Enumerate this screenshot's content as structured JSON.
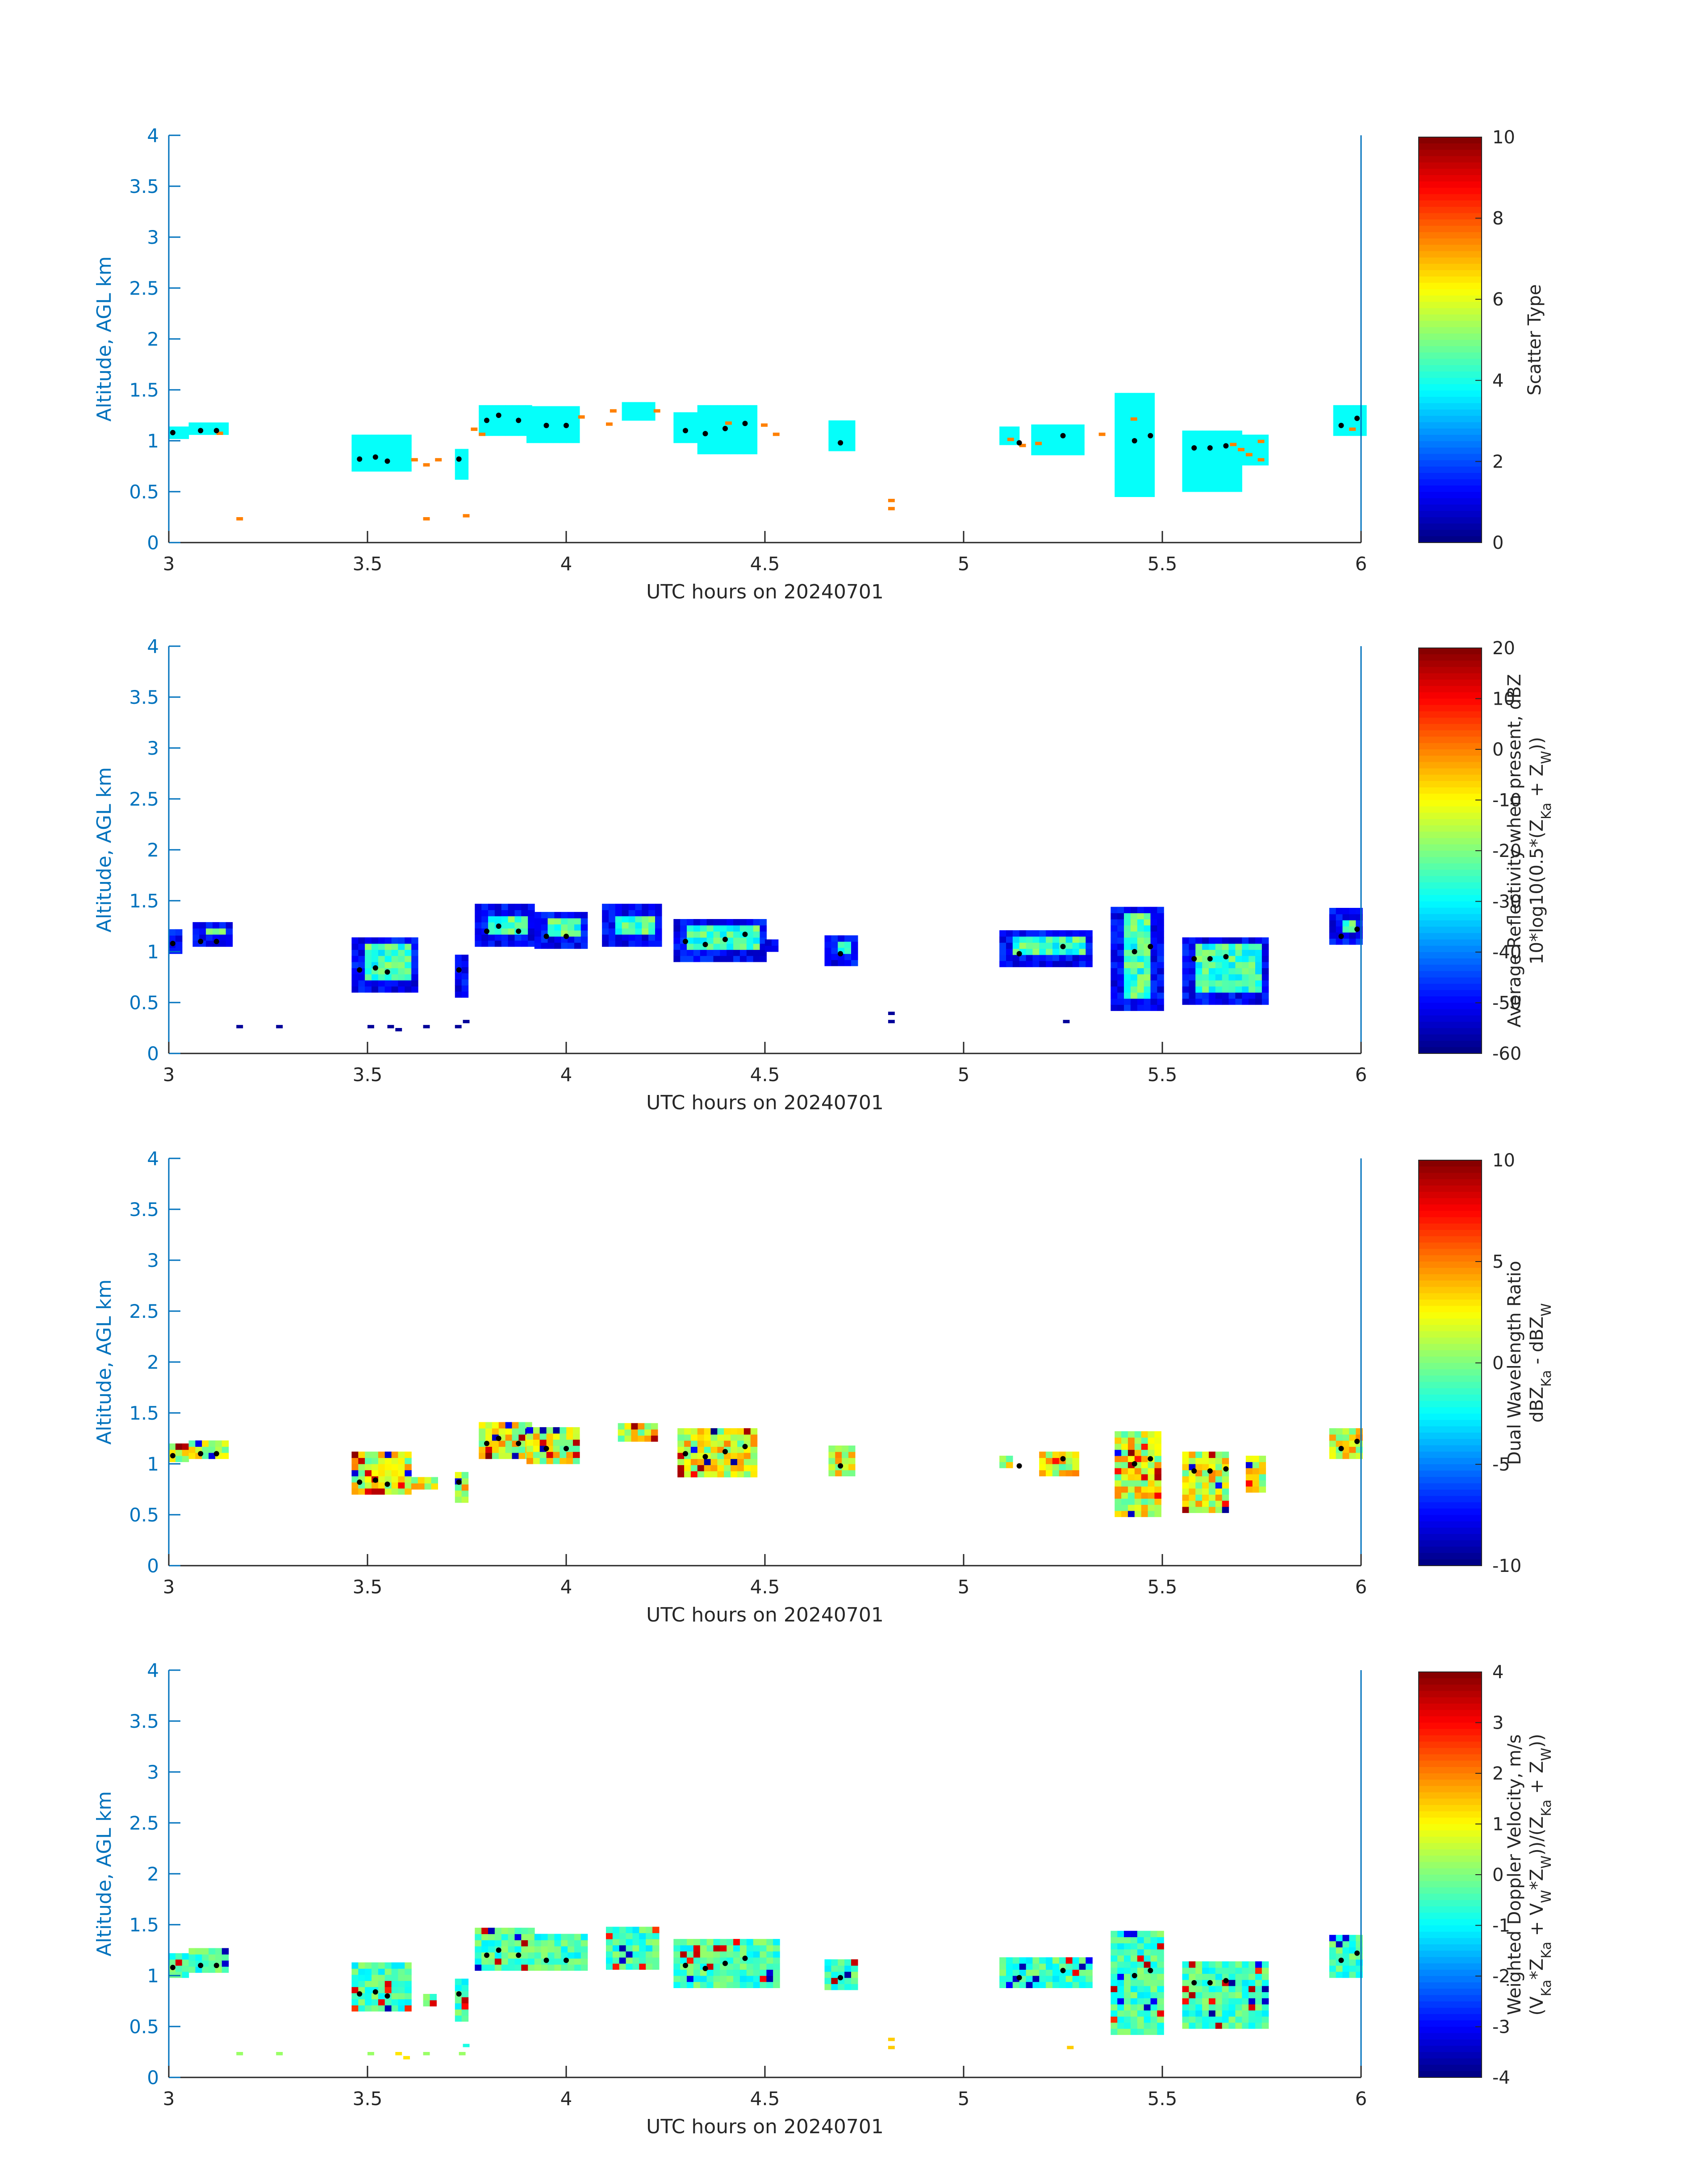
{
  "figure": {
    "panels": [
      {
        "id": "scatter-type",
        "ylabel": "Altitude, AGL km",
        "xlabel": "UTC hours on 20240701",
        "colorbar_label_lines": [
          "Scatter Type"
        ],
        "colorbar_ticks": [
          "10",
          "8",
          "6",
          "4",
          "2",
          "0"
        ]
      },
      {
        "id": "reflectivity",
        "ylabel": "Altitude, AGL km",
        "xlabel": "UTC hours on 20240701",
        "colorbar_label_lines": [
          "Average Reflectivity when present, dBZ",
          "10*log10(0.5*(Z_Ka + Z_W))"
        ],
        "colorbar_ticks": [
          "20",
          "10",
          "0",
          "-10",
          "-20",
          "-30",
          "-40",
          "-50",
          "-60"
        ]
      },
      {
        "id": "dwr",
        "ylabel": "Altitude, AGL km",
        "xlabel": "UTC hours on 20240701",
        "colorbar_label_lines": [
          "Dual Wavelength Ratio",
          "dBZ_Ka - dBZ_W"
        ],
        "colorbar_ticks": [
          "10",
          "5",
          "0",
          "-5",
          "-10"
        ]
      },
      {
        "id": "velocity",
        "ylabel": "Altitude, AGL km",
        "xlabel": "UTC hours on 20240701",
        "colorbar_label_lines": [
          "Weighted Doppler Velocity, m/s",
          "(V_Ka*Z_Ka + V_W*Z_W))/(Z_Ka + Z_W))"
        ],
        "colorbar_ticks": [
          "4",
          "3",
          "2",
          "1",
          "0",
          "-1",
          "-2",
          "-3",
          "-4"
        ]
      }
    ],
    "x_ticks": [
      "3",
      "3.5",
      "4",
      "4.5",
      "5",
      "5.5",
      "6"
    ],
    "y_ticks": [
      "0",
      "0.5",
      "1",
      "1.5",
      "2",
      "2.5",
      "3",
      "3.5",
      "4"
    ]
  },
  "chart_data": [
    {
      "type": "heatmap",
      "xlabel": "UTC hours on 20240701",
      "ylabel": "Altitude, AGL km",
      "xlim": [
        3,
        6
      ],
      "ylim": [
        0,
        4
      ],
      "colorbar": {
        "label": "Scatter Type",
        "range": [
          0,
          10
        ],
        "colormap": "jet"
      },
      "cell_size": {
        "dx_hours": 0.0167,
        "dz_km": 0.06
      },
      "default_value": 3.8,
      "regions": [
        {
          "x": [
            3.0,
            3.04
          ],
          "z": [
            1.02,
            1.14
          ]
        },
        {
          "x": [
            3.05,
            3.15
          ],
          "z": [
            1.06,
            1.18
          ]
        },
        {
          "x": [
            3.46,
            3.6
          ],
          "z": [
            0.7,
            1.05
          ]
        },
        {
          "x": [
            3.72,
            3.75
          ],
          "z": [
            0.62,
            0.92
          ]
        },
        {
          "x": [
            3.78,
            3.9
          ],
          "z": [
            1.05,
            1.33
          ]
        },
        {
          "x": [
            3.9,
            4.02
          ],
          "z": [
            0.98,
            1.3
          ]
        },
        {
          "x": [
            4.14,
            4.22
          ],
          "z": [
            1.2,
            1.33
          ]
        },
        {
          "x": [
            4.27,
            4.33
          ],
          "z": [
            0.98,
            1.28
          ]
        },
        {
          "x": [
            4.33,
            4.48
          ],
          "z": [
            0.87,
            1.3
          ]
        },
        {
          "x": [
            4.66,
            4.72
          ],
          "z": [
            0.9,
            1.15
          ]
        },
        {
          "x": [
            5.09,
            5.13
          ],
          "z": [
            0.96,
            1.12
          ]
        },
        {
          "x": [
            5.17,
            5.3
          ],
          "z": [
            0.86,
            1.14
          ]
        },
        {
          "x": [
            5.38,
            5.48
          ],
          "z": [
            0.45,
            1.42
          ]
        },
        {
          "x": [
            5.55,
            5.7
          ],
          "z": [
            0.5,
            1.05
          ]
        },
        {
          "x": [
            5.7,
            5.76
          ],
          "z": [
            0.76,
            1.05
          ]
        },
        {
          "x": [
            5.93,
            6.0
          ],
          "z": [
            1.05,
            1.33
          ]
        }
      ],
      "spots": [
        {
          "x": 3.12,
          "z": 1.06,
          "v": 7.5
        },
        {
          "x": 3.17,
          "z": 0.22,
          "v": 7.5
        },
        {
          "x": 3.61,
          "z": 0.8,
          "v": 7.5
        },
        {
          "x": 3.64,
          "z": 0.75,
          "v": 7.5
        },
        {
          "x": 3.64,
          "z": 0.22,
          "v": 7.5
        },
        {
          "x": 3.67,
          "z": 0.8,
          "v": 7.5
        },
        {
          "x": 3.74,
          "z": 0.25,
          "v": 7.5
        },
        {
          "x": 3.76,
          "z": 1.1,
          "v": 7.5
        },
        {
          "x": 3.78,
          "z": 1.05,
          "v": 7.5
        },
        {
          "x": 4.03,
          "z": 1.22,
          "v": 7.5
        },
        {
          "x": 4.1,
          "z": 1.15,
          "v": 7.5
        },
        {
          "x": 4.11,
          "z": 1.28,
          "v": 7.5
        },
        {
          "x": 4.22,
          "z": 1.28,
          "v": 7.5
        },
        {
          "x": 4.4,
          "z": 1.16,
          "v": 7.5
        },
        {
          "x": 4.49,
          "z": 1.14,
          "v": 7.5
        },
        {
          "x": 4.52,
          "z": 1.05,
          "v": 7.5
        },
        {
          "x": 4.81,
          "z": 0.32,
          "v": 7.5
        },
        {
          "x": 4.81,
          "z": 0.4,
          "v": 7.5
        },
        {
          "x": 5.11,
          "z": 1.0,
          "v": 7.5
        },
        {
          "x": 5.14,
          "z": 0.94,
          "v": 7.5
        },
        {
          "x": 5.18,
          "z": 0.96,
          "v": 7.5
        },
        {
          "x": 5.34,
          "z": 1.05,
          "v": 7.5
        },
        {
          "x": 5.42,
          "z": 1.2,
          "v": 7.5
        },
        {
          "x": 5.67,
          "z": 0.95,
          "v": 7.5
        },
        {
          "x": 5.69,
          "z": 0.9,
          "v": 7.5
        },
        {
          "x": 5.71,
          "z": 0.85,
          "v": 7.5
        },
        {
          "x": 5.74,
          "z": 0.98,
          "v": 7.5
        },
        {
          "x": 5.74,
          "z": 0.8,
          "v": 7.5
        },
        {
          "x": 5.97,
          "z": 1.1,
          "v": 7.5
        }
      ],
      "cloud_top_trace": [
        {
          "x": 3.01,
          "z": 1.08
        },
        {
          "x": 3.08,
          "z": 1.1
        },
        {
          "x": 3.12,
          "z": 1.1
        },
        {
          "x": 3.48,
          "z": 0.82
        },
        {
          "x": 3.52,
          "z": 0.84
        },
        {
          "x": 3.55,
          "z": 0.8
        },
        {
          "x": 3.73,
          "z": 0.82
        },
        {
          "x": 3.8,
          "z": 1.2
        },
        {
          "x": 3.83,
          "z": 1.25
        },
        {
          "x": 3.88,
          "z": 1.2
        },
        {
          "x": 3.95,
          "z": 1.15
        },
        {
          "x": 4.0,
          "z": 1.15
        },
        {
          "x": 4.3,
          "z": 1.1
        },
        {
          "x": 4.35,
          "z": 1.07
        },
        {
          "x": 4.4,
          "z": 1.12
        },
        {
          "x": 4.45,
          "z": 1.17
        },
        {
          "x": 4.69,
          "z": 0.98
        },
        {
          "x": 5.14,
          "z": 0.98
        },
        {
          "x": 5.25,
          "z": 1.05
        },
        {
          "x": 5.43,
          "z": 1.0
        },
        {
          "x": 5.47,
          "z": 1.05
        },
        {
          "x": 5.58,
          "z": 0.93
        },
        {
          "x": 5.62,
          "z": 0.93
        },
        {
          "x": 5.66,
          "z": 0.95
        },
        {
          "x": 5.95,
          "z": 1.15
        },
        {
          "x": 5.99,
          "z": 1.22
        }
      ]
    },
    {
      "type": "heatmap",
      "xlabel": "UTC hours on 20240701",
      "ylabel": "Altitude, AGL km",
      "xlim": [
        3,
        6
      ],
      "ylim": [
        0,
        4
      ],
      "colorbar": {
        "label": "Average Reflectivity when present, dBZ",
        "range": [
          -60,
          20
        ],
        "colormap": "jet"
      },
      "edge_value": -55,
      "core_value": -25,
      "regions": [
        {
          "x": [
            3.0,
            3.03
          ],
          "z": [
            0.98,
            1.22
          ]
        },
        {
          "x": [
            3.06,
            3.15
          ],
          "z": [
            1.05,
            1.25
          ]
        },
        {
          "x": [
            3.46,
            3.62
          ],
          "z": [
            0.6,
            1.13
          ]
        },
        {
          "x": [
            3.72,
            3.75
          ],
          "z": [
            0.55,
            0.95
          ]
        },
        {
          "x": [
            3.77,
            3.92
          ],
          "z": [
            1.05,
            1.42
          ]
        },
        {
          "x": [
            3.92,
            4.05
          ],
          "z": [
            1.03,
            1.38
          ]
        },
        {
          "x": [
            4.09,
            4.24
          ],
          "z": [
            1.05,
            1.42
          ]
        },
        {
          "x": [
            4.27,
            4.5
          ],
          "z": [
            0.9,
            1.3
          ]
        },
        {
          "x": [
            4.5,
            4.53
          ],
          "z": [
            1.0,
            1.1
          ]
        },
        {
          "x": [
            4.65,
            4.73
          ],
          "z": [
            0.86,
            1.15
          ]
        },
        {
          "x": [
            5.09,
            5.32
          ],
          "z": [
            0.85,
            1.18
          ]
        },
        {
          "x": [
            5.37,
            5.49
          ],
          "z": [
            0.42,
            1.43
          ]
        },
        {
          "x": [
            5.55,
            5.76
          ],
          "z": [
            0.48,
            1.1
          ]
        },
        {
          "x": [
            5.92,
            6.0
          ],
          "z": [
            1.07,
            1.38
          ]
        }
      ],
      "spots": [
        {
          "x": 3.17,
          "z": 0.25,
          "v": -58
        },
        {
          "x": 3.27,
          "z": 0.25,
          "v": -58
        },
        {
          "x": 3.5,
          "z": 0.25,
          "v": -58
        },
        {
          "x": 3.55,
          "z": 0.25,
          "v": -58
        },
        {
          "x": 3.57,
          "z": 0.22,
          "v": -58
        },
        {
          "x": 3.64,
          "z": 0.25,
          "v": -58
        },
        {
          "x": 3.72,
          "z": 0.25,
          "v": -58
        },
        {
          "x": 3.74,
          "z": 0.3,
          "v": -58
        },
        {
          "x": 4.81,
          "z": 0.3,
          "v": -58
        },
        {
          "x": 4.81,
          "z": 0.38,
          "v": -58
        },
        {
          "x": 5.25,
          "z": 0.3,
          "v": -58
        }
      ]
    },
    {
      "type": "heatmap",
      "xlabel": "UTC hours on 20240701",
      "ylabel": "Altitude, AGL km",
      "xlim": [
        3,
        6
      ],
      "ylim": [
        0,
        4
      ],
      "colorbar": {
        "label": "Dual Wavelength Ratio",
        "range": [
          -10,
          10
        ],
        "colormap": "jet"
      },
      "base_value": 2,
      "regions": [
        {
          "x": [
            3.0,
            3.04
          ],
          "z": [
            1.02,
            1.18
          ]
        },
        {
          "x": [
            3.05,
            3.15
          ],
          "z": [
            1.05,
            1.2
          ]
        },
        {
          "x": [
            3.46,
            3.6
          ],
          "z": [
            0.7,
            1.1
          ]
        },
        {
          "x": [
            3.61,
            3.67
          ],
          "z": [
            0.75,
            0.85
          ]
        },
        {
          "x": [
            3.72,
            3.75
          ],
          "z": [
            0.62,
            0.9
          ]
        },
        {
          "x": [
            3.78,
            3.9
          ],
          "z": [
            1.05,
            1.38
          ]
        },
        {
          "x": [
            3.9,
            4.02
          ],
          "z": [
            1.0,
            1.35
          ]
        },
        {
          "x": [
            4.13,
            4.22
          ],
          "z": [
            1.22,
            1.38
          ]
        },
        {
          "x": [
            4.28,
            4.48
          ],
          "z": [
            0.87,
            1.32
          ]
        },
        {
          "x": [
            4.66,
            4.72
          ],
          "z": [
            0.88,
            1.14
          ]
        },
        {
          "x": [
            5.09,
            5.12
          ],
          "z": [
            0.96,
            1.08
          ]
        },
        {
          "x": [
            5.19,
            5.29
          ],
          "z": [
            0.88,
            1.12
          ]
        },
        {
          "x": [
            5.38,
            5.49
          ],
          "z": [
            0.48,
            1.32
          ]
        },
        {
          "x": [
            5.55,
            5.66
          ],
          "z": [
            0.52,
            1.1
          ]
        },
        {
          "x": [
            5.71,
            5.76
          ],
          "z": [
            0.72,
            1.05
          ]
        },
        {
          "x": [
            5.92,
            6.0
          ],
          "z": [
            1.05,
            1.32
          ]
        }
      ]
    },
    {
      "type": "heatmap",
      "xlabel": "UTC hours on 20240701",
      "ylabel": "Altitude, AGL km",
      "xlim": [
        3,
        6
      ],
      "ylim": [
        0,
        4
      ],
      "colorbar": {
        "label": "Weighted Doppler Velocity, m/s",
        "range": [
          -4,
          4
        ],
        "colormap": "jet"
      },
      "base_value": -0.5,
      "regions": [
        {
          "x": [
            3.0,
            3.04
          ],
          "z": [
            0.98,
            1.18
          ]
        },
        {
          "x": [
            3.05,
            3.15
          ],
          "z": [
            1.03,
            1.24
          ]
        },
        {
          "x": [
            3.46,
            3.6
          ],
          "z": [
            0.65,
            1.1
          ]
        },
        {
          "x": [
            3.64,
            3.67
          ],
          "z": [
            0.7,
            0.8
          ]
        },
        {
          "x": [
            3.72,
            3.75
          ],
          "z": [
            0.55,
            0.95
          ]
        },
        {
          "x": [
            3.77,
            3.92
          ],
          "z": [
            1.05,
            1.43
          ]
        },
        {
          "x": [
            3.92,
            4.05
          ],
          "z": [
            1.05,
            1.38
          ]
        },
        {
          "x": [
            4.1,
            4.23
          ],
          "z": [
            1.06,
            1.43
          ]
        },
        {
          "x": [
            4.27,
            4.53
          ],
          "z": [
            0.88,
            1.32
          ]
        },
        {
          "x": [
            4.65,
            4.73
          ],
          "z": [
            0.86,
            1.14
          ]
        },
        {
          "x": [
            5.09,
            5.31
          ],
          "z": [
            0.88,
            1.17
          ]
        },
        {
          "x": [
            5.37,
            5.49
          ],
          "z": [
            0.42,
            1.43
          ]
        },
        {
          "x": [
            5.55,
            5.76
          ],
          "z": [
            0.48,
            1.1
          ]
        },
        {
          "x": [
            5.92,
            6.0
          ],
          "z": [
            0.98,
            1.38
          ]
        }
      ],
      "spots": [
        {
          "x": 3.17,
          "z": 0.22,
          "v": 0.2
        },
        {
          "x": 3.27,
          "z": 0.22,
          "v": 0.2
        },
        {
          "x": 3.5,
          "z": 0.22,
          "v": 0.2
        },
        {
          "x": 3.57,
          "z": 0.22,
          "v": 1.2
        },
        {
          "x": 3.59,
          "z": 0.18,
          "v": 1.2
        },
        {
          "x": 3.64,
          "z": 0.22,
          "v": 0.2
        },
        {
          "x": 3.73,
          "z": 0.22,
          "v": 0.2
        },
        {
          "x": 3.74,
          "z": 0.3,
          "v": -0.8
        },
        {
          "x": 4.81,
          "z": 0.28,
          "v": 1.4
        },
        {
          "x": 4.81,
          "z": 0.36,
          "v": 1.4
        },
        {
          "x": 5.26,
          "z": 0.28,
          "v": 1.4
        }
      ]
    }
  ]
}
